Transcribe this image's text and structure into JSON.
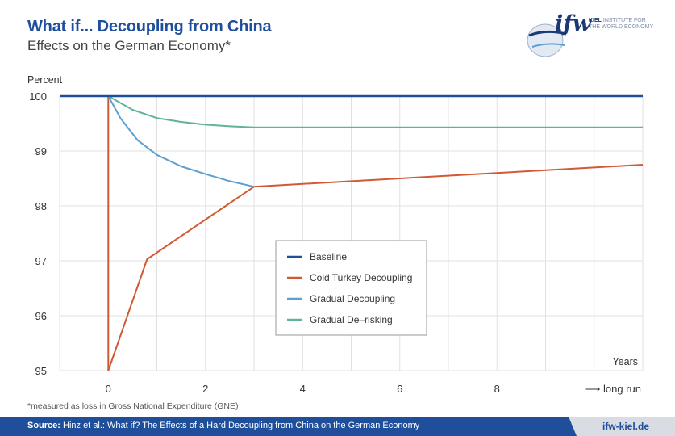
{
  "header": {
    "title": "What if... Decoupling from China",
    "subtitle": "Effects on the German Economy*"
  },
  "logo": {
    "mark": "ifw",
    "line1": "KIEL",
    "line2": "INSTITUTE FOR",
    "line3": "THE WORLD ECONOMY"
  },
  "chart_data": {
    "type": "line",
    "ylabel": "Percent",
    "xlabel": "Years",
    "ylim": [
      95,
      100
    ],
    "xlim": [
      -1,
      11
    ],
    "yticks": [
      95,
      96,
      97,
      98,
      99,
      100
    ],
    "xticks": [
      {
        "value": 0,
        "label": "0"
      },
      {
        "value": 2,
        "label": "2"
      },
      {
        "value": 4,
        "label": "4"
      },
      {
        "value": 6,
        "label": "6"
      },
      {
        "value": 8,
        "label": "8"
      },
      {
        "value": 11,
        "label": "⟶ long run"
      }
    ],
    "grid": true,
    "legend": "center",
    "series": [
      {
        "name": "Baseline",
        "color": "#1f4e9a",
        "points": [
          [
            -1,
            100
          ],
          [
            11,
            100
          ]
        ]
      },
      {
        "name": "Cold Turkey Decoupling",
        "color": "#d05a35",
        "points": [
          [
            -1,
            100
          ],
          [
            0,
            100
          ],
          [
            0,
            95
          ],
          [
            0.8,
            97.03
          ],
          [
            3,
            98.35
          ],
          [
            11,
            98.75
          ]
        ]
      },
      {
        "name": "Gradual Decoupling",
        "color": "#5b9fd3",
        "points": [
          [
            0,
            100
          ],
          [
            0.25,
            99.6
          ],
          [
            0.6,
            99.2
          ],
          [
            1,
            98.93
          ],
          [
            1.5,
            98.72
          ],
          [
            2,
            98.58
          ],
          [
            2.5,
            98.45
          ],
          [
            3,
            98.35
          ]
        ]
      },
      {
        "name": "Gradual De–risking",
        "color": "#5fb39a",
        "points": [
          [
            0,
            100
          ],
          [
            0.5,
            99.75
          ],
          [
            1,
            99.6
          ],
          [
            1.5,
            99.53
          ],
          [
            2,
            99.48
          ],
          [
            2.5,
            99.45
          ],
          [
            3,
            99.43
          ],
          [
            11,
            99.43
          ]
        ]
      }
    ]
  },
  "footnote": "*measured as loss in Gross National Expenditure (GNE)",
  "footer": {
    "source_label": "Source:",
    "source_text": " Hinz et al.: What if? The Effects of a Hard Decoupling from China on the German Economy",
    "site": "ifw-kiel.de"
  }
}
